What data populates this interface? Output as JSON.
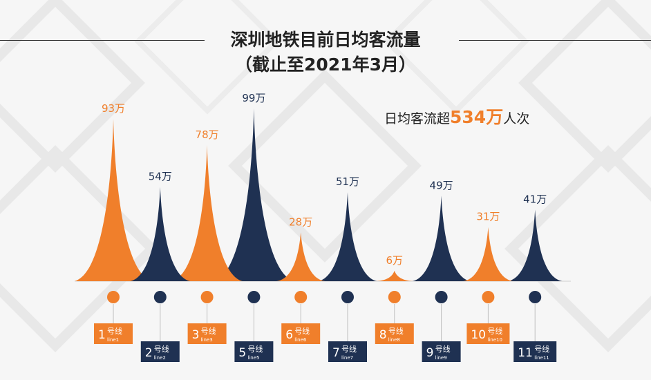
{
  "title": "深圳地铁目前日均客流量",
  "subtitle": "（截止至2021年3月）",
  "summary": {
    "prefix": "日均客流超",
    "value": "534万",
    "suffix": "人次"
  },
  "colors": {
    "orange": "#f07f2b",
    "navy": "#1f3152"
  },
  "chart_data": {
    "type": "area",
    "unit": "万",
    "categories": [
      {
        "num": "1",
        "label": "号线",
        "sub": "line1"
      },
      {
        "num": "2",
        "label": "号线",
        "sub": "line2"
      },
      {
        "num": "3",
        "label": "号线",
        "sub": "line3"
      },
      {
        "num": "5",
        "label": "号线",
        "sub": "line5"
      },
      {
        "num": "6",
        "label": "号线",
        "sub": "line6"
      },
      {
        "num": "7",
        "label": "号线",
        "sub": "line7"
      },
      {
        "num": "8",
        "label": "号线",
        "sub": "line8"
      },
      {
        "num": "9",
        "label": "号线",
        "sub": "line9"
      },
      {
        "num": "10",
        "label": "号线",
        "sub": "line10"
      },
      {
        "num": "11",
        "label": "号线",
        "sub": "line11"
      }
    ],
    "values": [
      93,
      54,
      78,
      99,
      28,
      51,
      6,
      49,
      31,
      41
    ],
    "data_labels": [
      "93万",
      "54万",
      "78万",
      "99万",
      "28万",
      "51万",
      "6万",
      "49万",
      "31万",
      "41万"
    ],
    "point_colors": [
      "orange",
      "navy",
      "orange",
      "navy",
      "orange",
      "navy",
      "orange",
      "navy",
      "orange",
      "navy"
    ]
  }
}
